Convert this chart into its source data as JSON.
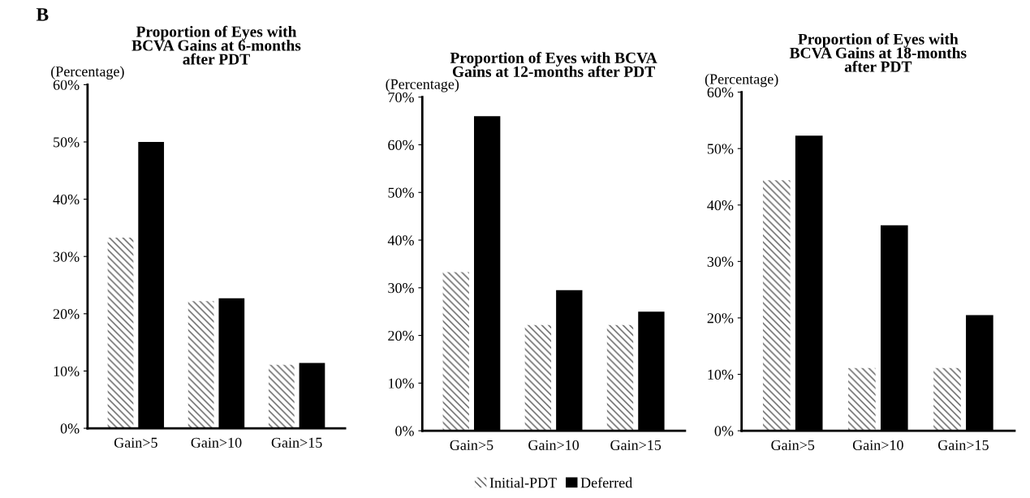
{
  "chart_data": [
    {
      "type": "bar",
      "title": "Proportion of Eyes with\nBCVA Gains at 6-months\nafter PDT",
      "ylabel": "(Percentage)",
      "annotations": [
        "B"
      ],
      "categories": [
        "Gain>5",
        "Gain>10",
        "Gain>15"
      ],
      "series": [
        {
          "color": "#ffffff",
          "values": [
            33.3,
            22.2,
            11.1
          ]
        },
        {
          "color": "#000000",
          "values": [
            50,
            22.7,
            11.4
          ]
        }
      ],
      "ylim": [
        0,
        60
      ],
      "yticks": [
        {
          "value": 0,
          "label": "0%"
        },
        {
          "value": 10,
          "label": "10%"
        },
        {
          "value": 20,
          "label": "20%"
        },
        {
          "value": 30,
          "label": "30%"
        },
        {
          "value": 40,
          "label": "40%"
        },
        {
          "value": 50,
          "label": "50%"
        },
        {
          "value": 60,
          "label": "60%"
        }
      ]
    },
    {
      "type": "bar",
      "title": "Proportion of Eyes with BCVA\nGains at 12-months after PDT",
      "ylabel": "(Percentage)",
      "categories": [
        "Gain>5",
        "Gain>10",
        "Gain>15"
      ],
      "legend": "bottom",
      "series": [
        {
          "name": "Initial-PDT",
          "color": "#ffffff",
          "values": [
            33.3,
            22.2,
            22.2
          ]
        },
        {
          "name": "Deferred",
          "color": "#000000",
          "values": [
            66,
            29.5,
            25
          ]
        }
      ],
      "ylim": [
        0,
        70
      ],
      "yticks": [
        {
          "value": 0,
          "label": "0%"
        },
        {
          "value": 10,
          "label": "10%"
        },
        {
          "value": 20,
          "label": "20%"
        },
        {
          "value": 30,
          "label": "30%"
        },
        {
          "value": 40,
          "label": "40%"
        },
        {
          "value": 50,
          "label": "50%"
        },
        {
          "value": 60,
          "label": "60%"
        },
        {
          "value": 70,
          "label": "70%"
        }
      ]
    },
    {
      "type": "bar",
      "title": "Proportion of Eyes with\nBCVA Gains at 18-months\nafter PDT",
      "ylabel": "(Percentage)",
      "categories": [
        "Gain>5",
        "Gain>10",
        "Gain>15"
      ],
      "series": [
        {
          "color": "#ffffff",
          "values": [
            44.4,
            11.1,
            11.1
          ]
        },
        {
          "color": "#000000",
          "values": [
            52.3,
            36.4,
            20.5
          ]
        }
      ],
      "ylim": [
        0,
        60
      ],
      "yticks": [
        {
          "value": 0,
          "label": "0%"
        },
        {
          "value": 10,
          "label": "10%"
        },
        {
          "value": 20,
          "label": "20%"
        },
        {
          "value": 30,
          "label": "30%"
        },
        {
          "value": 40,
          "label": "40%"
        },
        {
          "value": 50,
          "label": "50%"
        },
        {
          "value": 60,
          "label": "60%"
        }
      ]
    }
  ]
}
